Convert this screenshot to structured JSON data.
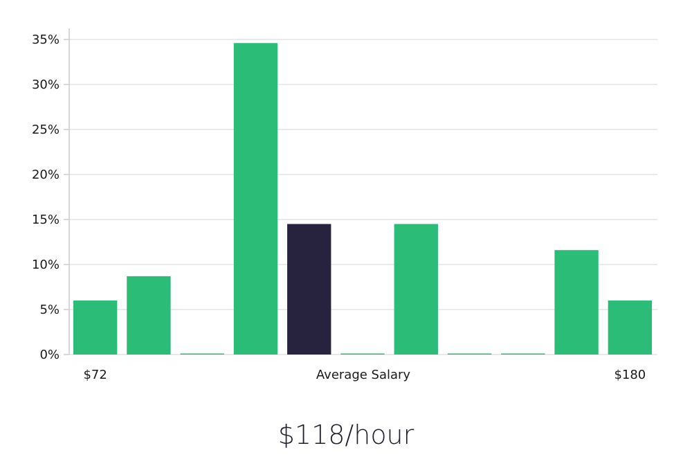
{
  "chart_data": {
    "type": "bar",
    "categories": [
      "",
      "",
      "",
      "",
      "",
      "",
      "",
      "",
      "",
      "",
      ""
    ],
    "values": [
      6,
      8.7,
      0,
      34.6,
      14.5,
      0,
      14.5,
      0,
      0,
      11.6,
      6
    ],
    "highlight_index": 4,
    "ylim": [
      0,
      35
    ],
    "yticks": [
      "0%",
      "5%",
      "10%",
      "15%",
      "20%",
      "25%",
      "30%",
      "35%"
    ],
    "ytick_values": [
      0,
      5,
      10,
      15,
      20,
      25,
      30,
      35
    ],
    "x_labels": {
      "left": "$72",
      "center": "Average Salary",
      "right": "$180"
    },
    "grid": true,
    "colors": {
      "bar": "#2bbd77",
      "highlight": "#27233f",
      "grid": "#e3e3e3",
      "axis": "#cccccc"
    }
  },
  "summary": {
    "average_rate": "$118/hour"
  }
}
